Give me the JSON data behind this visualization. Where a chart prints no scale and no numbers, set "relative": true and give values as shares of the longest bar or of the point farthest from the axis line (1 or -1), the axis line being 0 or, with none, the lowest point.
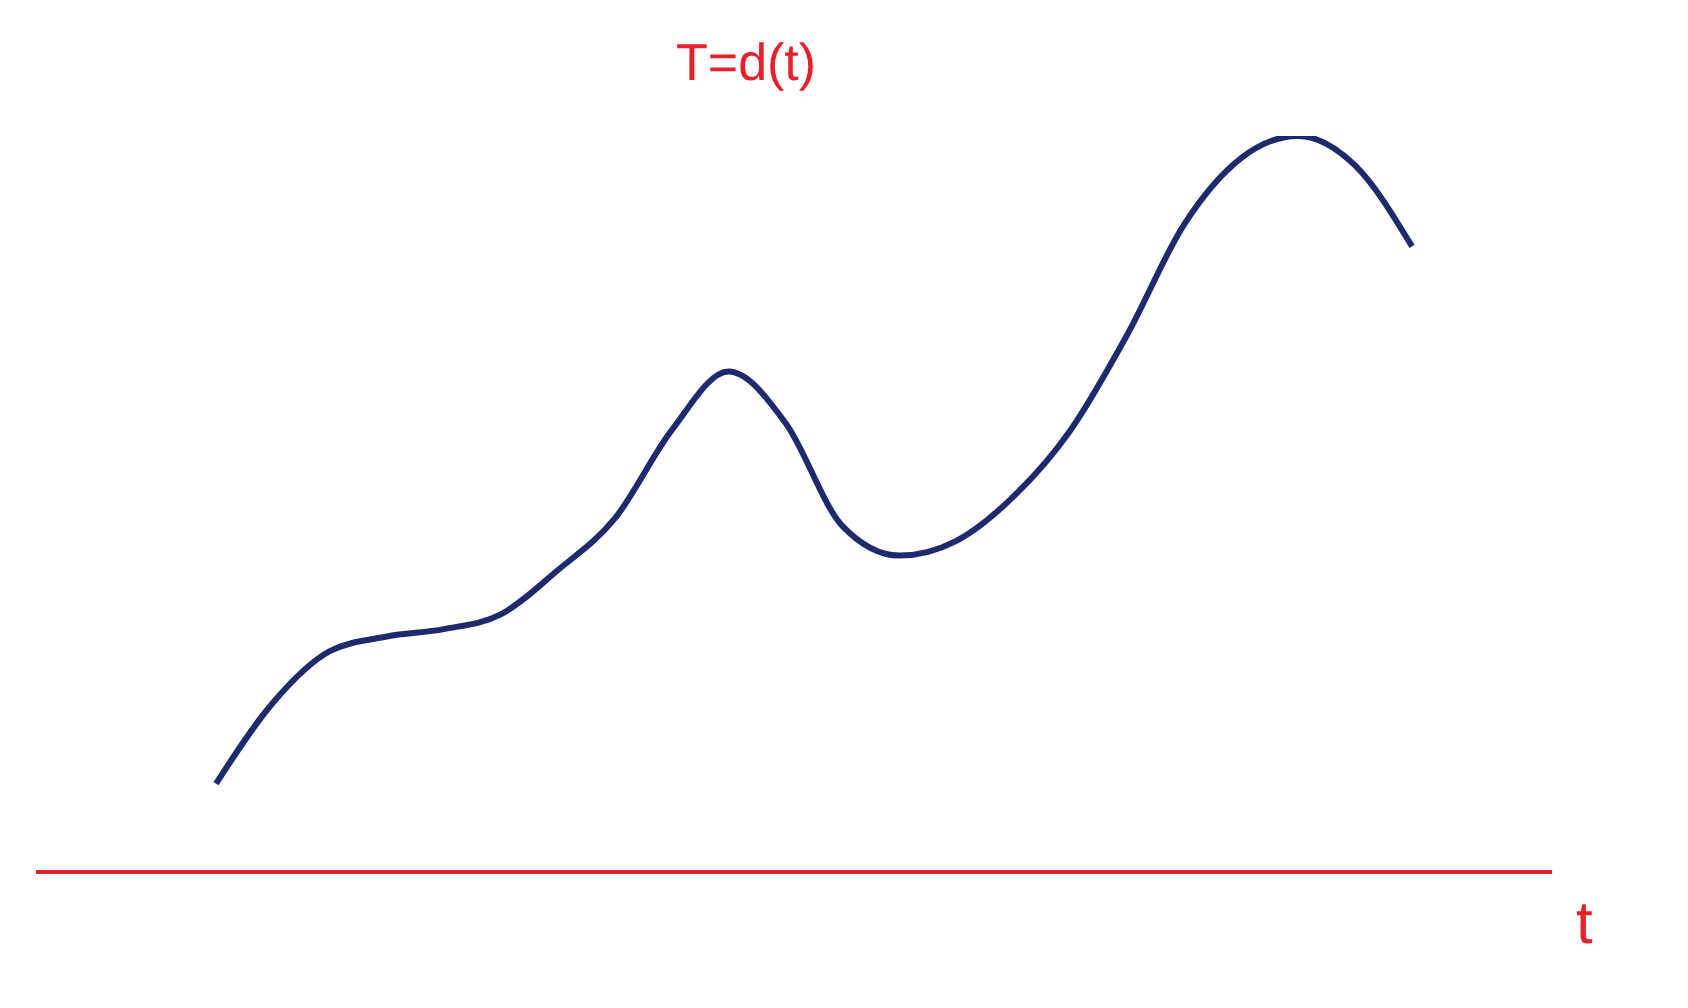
{
  "chart_data": {
    "type": "line",
    "relative": true,
    "xlabel": "t",
    "ylabel": "T=d(t)",
    "categories": [
      null,
      null,
      null,
      null,
      null,
      null,
      null,
      null,
      null,
      null,
      null,
      null,
      null,
      null,
      null,
      null,
      null,
      null,
      null,
      null,
      null,
      null
    ],
    "series": [
      {
        "color": "#1f2a6e",
        "values": [
          0.12,
          0.23,
          0.3,
          0.32,
          0.33,
          0.35,
          0.41,
          0.48,
          0.6,
          0.68,
          0.61,
          0.47,
          0.43,
          0.45,
          0.51,
          0.6,
          0.73,
          0.88,
          0.97,
          1,
          0.96,
          0.85
        ]
      }
    ],
    "marker": "none",
    "grid": false,
    "legend": false
  }
}
